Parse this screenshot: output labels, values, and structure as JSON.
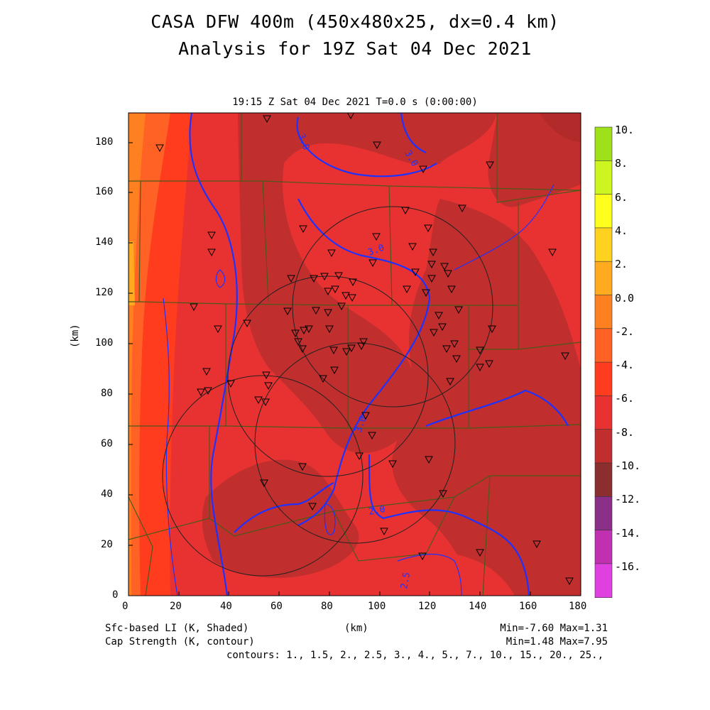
{
  "title": {
    "line1": "CASA DFW 400m (450x480x25, dx=0.4 km)",
    "line2": "Analysis for 19Z Sat 04 Dec 2021"
  },
  "plot_header": "19:15 Z Sat 04 Dec 2021   T=0.0 s (0:00:00)",
  "axes": {
    "xlabel": "(km)",
    "ylabel": "(km)",
    "x_ticks": [
      "0",
      "20",
      "40",
      "60",
      "80",
      "100",
      "120",
      "140",
      "160",
      "180"
    ],
    "y_ticks": [
      "0",
      "20",
      "40",
      "60",
      "80",
      "100",
      "120",
      "140",
      "160",
      "180"
    ],
    "xlim": [
      0,
      180
    ],
    "ylim": [
      0,
      192
    ]
  },
  "colorbar": {
    "labels": [
      "10.",
      "8.",
      "6.",
      "4.",
      "2.",
      "0.0",
      "-2.",
      "-4.",
      "-6.",
      "-8.",
      "-10.",
      "-12.",
      "-14.",
      "-16."
    ],
    "colors": [
      "#9ee01a",
      "#cdf51f",
      "#ffff1e",
      "#ffd21f",
      "#ffaa1f",
      "#ff8020",
      "#ff6224",
      "#ff3c1e",
      "#e83232",
      "#c02e2e",
      "#8a2e2e",
      "#8a3088",
      "#c030b0",
      "#e040e0"
    ]
  },
  "contour_labels": [
    "3.0",
    "3.0",
    "3.0",
    "3.0",
    "2.0",
    "2.5"
  ],
  "footer": {
    "left1": "Sfc-based LI (K, Shaded)",
    "left2": "Cap Strength (K, contour)",
    "center": "(km)",
    "right1": "Min=-7.60 Max=1.31",
    "right2": "Min=1.48 Max=7.95",
    "contours": "contours: 1., 1.5, 2., 2.5, 3., 4., 5., 7., 10., 15., 20., 25.,"
  },
  "colors": {
    "county_lines": "#4a5a1a",
    "contour": "#1e32ff",
    "station_marker": "#000000"
  }
}
